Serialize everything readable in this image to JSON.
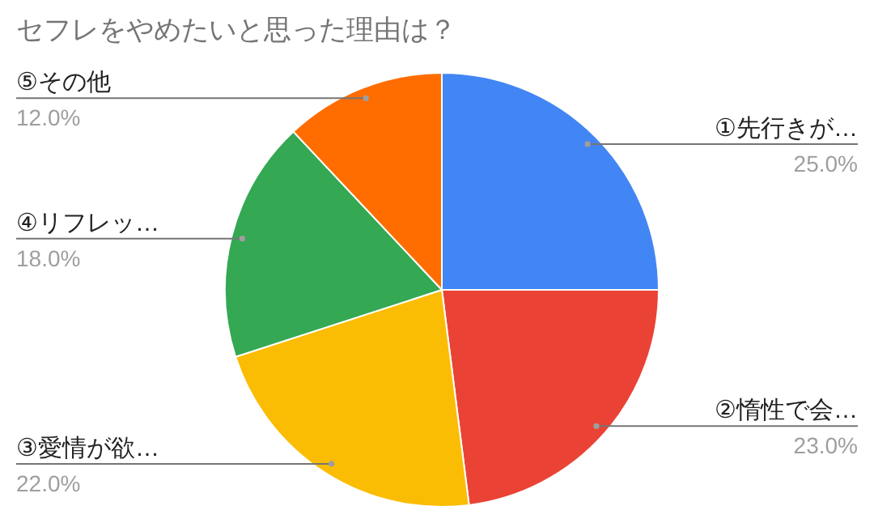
{
  "chart_data": {
    "type": "pie",
    "title": "セフレをやめたいと思った理由は？",
    "categories": [
      "①先行きが…",
      "②惰性で会…",
      "③愛情が欲…",
      "④リフレッ…",
      "⑤その他"
    ],
    "values": [
      25,
      23,
      22,
      18,
      12
    ],
    "value_labels": [
      "25.0%",
      "23.0%",
      "22.0%",
      "18.0%",
      "12.0%"
    ],
    "colors": [
      "#4285f4",
      "#ea4335",
      "#fbbc04",
      "#34a853",
      "#ff6d01"
    ]
  }
}
